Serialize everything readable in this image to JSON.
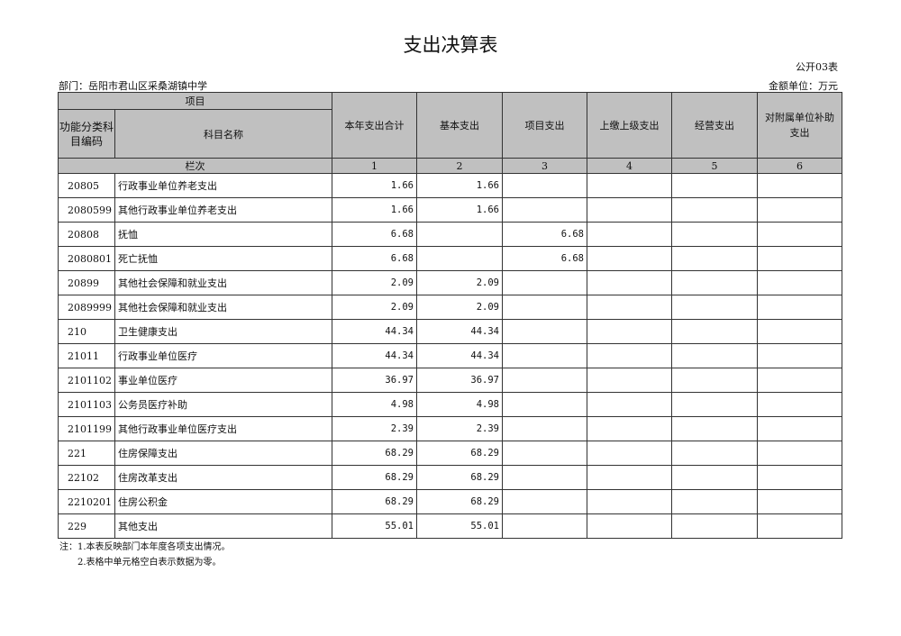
{
  "title": "支出决算表",
  "form_code": "公开03表",
  "department": "部门：岳阳市君山区采桑湖镇中学",
  "unit": "金额单位：万元",
  "headers": {
    "item": "项目",
    "code": "功能分类科目编码",
    "name": "科目名称",
    "total": "本年支出合计",
    "basic": "基本支出",
    "project": "项目支出",
    "upper": "上缴上级支出",
    "business": "经营支出",
    "subsidy": "对附属单位补助支出",
    "row_index": "栏次",
    "col_nums": [
      "1",
      "2",
      "3",
      "4",
      "5",
      "6"
    ]
  },
  "rows": [
    {
      "code": "20805",
      "name": "行政事业单位养老支出",
      "total": "1.66",
      "basic": "1.66",
      "project": ""
    },
    {
      "code": "2080599",
      "name": "其他行政事业单位养老支出",
      "total": "1.66",
      "basic": "1.66",
      "project": ""
    },
    {
      "code": "20808",
      "name": "抚恤",
      "total": "6.68",
      "basic": "",
      "project": "6.68"
    },
    {
      "code": "2080801",
      "name": "死亡抚恤",
      "total": "6.68",
      "basic": "",
      "project": "6.68"
    },
    {
      "code": "20899",
      "name": "其他社会保障和就业支出",
      "total": "2.09",
      "basic": "2.09",
      "project": ""
    },
    {
      "code": "2089999",
      "name": "其他社会保障和就业支出",
      "total": "2.09",
      "basic": "2.09",
      "project": ""
    },
    {
      "code": "210",
      "name": "卫生健康支出",
      "total": "44.34",
      "basic": "44.34",
      "project": ""
    },
    {
      "code": "21011",
      "name": "行政事业单位医疗",
      "total": "44.34",
      "basic": "44.34",
      "project": ""
    },
    {
      "code": "2101102",
      "name": "事业单位医疗",
      "total": "36.97",
      "basic": "36.97",
      "project": ""
    },
    {
      "code": "2101103",
      "name": "公务员医疗补助",
      "total": "4.98",
      "basic": "4.98",
      "project": ""
    },
    {
      "code": "2101199",
      "name": "其他行政事业单位医疗支出",
      "total": "2.39",
      "basic": "2.39",
      "project": ""
    },
    {
      "code": "221",
      "name": "住房保障支出",
      "total": "68.29",
      "basic": "68.29",
      "project": ""
    },
    {
      "code": "22102",
      "name": "住房改革支出",
      "total": "68.29",
      "basic": "68.29",
      "project": ""
    },
    {
      "code": "2210201",
      "name": "住房公积金",
      "total": "68.29",
      "basic": "68.29",
      "project": ""
    },
    {
      "code": "229",
      "name": "其他支出",
      "total": "55.01",
      "basic": "55.01",
      "project": ""
    }
  ],
  "notes": [
    "注：1.本表反映部门本年度各项支出情况。",
    "2.表格中单元格空白表示数据为零。"
  ]
}
